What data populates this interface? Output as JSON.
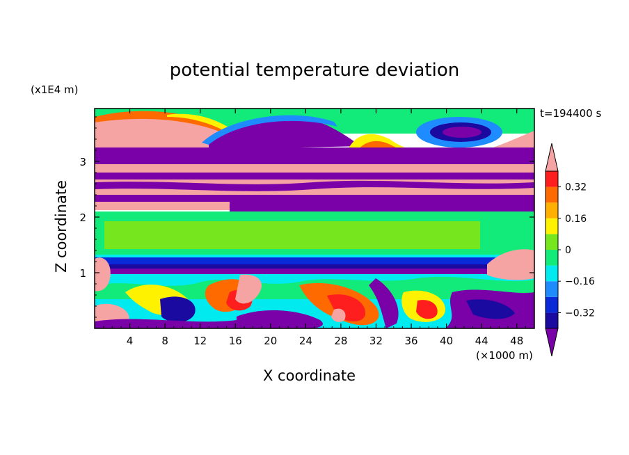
{
  "chart_data": {
    "type": "heatmap",
    "title": "potential temperature deviation",
    "time_label": "t=194400 s",
    "xlabel": "X coordinate",
    "xunit": "(×1000 m)",
    "ylabel": "Z coordinate",
    "yunit": "(x1E4 m)",
    "xlim": [
      0,
      50
    ],
    "ylim": [
      0,
      3.95
    ],
    "x_ticks": [
      "4",
      "8",
      "12",
      "16",
      "20",
      "24",
      "28",
      "32",
      "36",
      "40",
      "44",
      "48"
    ],
    "x_tick_values": [
      4,
      8,
      12,
      16,
      20,
      24,
      28,
      32,
      36,
      40,
      44,
      48
    ],
    "y_ticks": [
      "1",
      "2",
      "3"
    ],
    "y_tick_values": [
      1,
      2,
      3
    ],
    "colorbar": {
      "labels": [
        "0.32",
        "0.16",
        "0",
        "−0.16",
        "−0.32"
      ],
      "label_values": [
        0.32,
        0.16,
        0,
        -0.16,
        -0.32
      ],
      "levels": [
        -0.4,
        -0.32,
        -0.24,
        -0.16,
        -0.08,
        0,
        0.08,
        0.16,
        0.24,
        0.32,
        0.4
      ],
      "colors": [
        "#7a00a8",
        "#1b0aa0",
        "#0a2ad8",
        "#1e8cff",
        "#00eaf0",
        "#12ea7a",
        "#76e61e",
        "#fff200",
        "#ffb000",
        "#ff6a00",
        "#ff1e1e",
        "#f6a3a3"
      ],
      "extend": "both"
    },
    "bands": [
      {
        "z_from": 3.95,
        "z_to": 3.5,
        "value": 0.05,
        "pattern": "green background with salmon/orange arcs at left and blue-purple cell near x=40-46"
      },
      {
        "z_from": 3.5,
        "z_to": 3.0,
        "value": -0.45,
        "pattern": "purple band"
      },
      {
        "z_from": 3.0,
        "z_to": 2.3,
        "value": 0.45,
        "pattern": "alternating salmon and purple strata"
      },
      {
        "z_from": 2.3,
        "z_to": 2.1,
        "value": -0.45,
        "pattern": "purple band"
      },
      {
        "z_from": 2.1,
        "z_to": 1.25,
        "value": 0.05,
        "pattern": "green layer with lighter green interior"
      },
      {
        "z_from": 1.25,
        "z_to": 0.95,
        "value": -0.3,
        "pattern": "dark blue to purple band"
      },
      {
        "z_from": 0.95,
        "z_to": 0.0,
        "value": 0.0,
        "pattern": "turbulent mixed region, red/yellow/cyan/purple eddies"
      }
    ]
  }
}
